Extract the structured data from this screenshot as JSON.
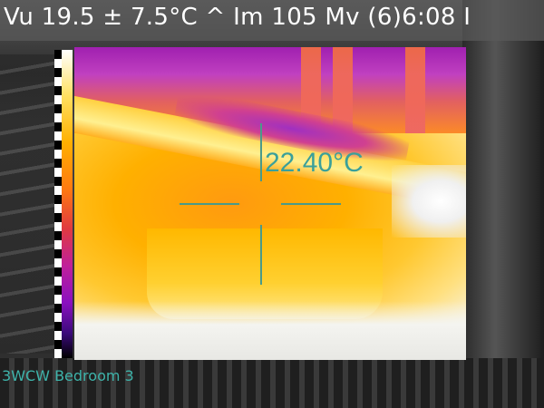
{
  "header": {
    "readout": "Vu 19.5 ± 7.5°C ^  Im 105 Mv (6)6:08 I"
  },
  "spot": {
    "temperature": "22.40°C"
  },
  "footer": {
    "location": "3WCW Bedroom 3"
  },
  "colors": {
    "overlay_text": "#ffffff",
    "crosshair": "#4a9a8a",
    "spot_text": "#3aa09a",
    "location_text": "#3eb3aa"
  },
  "palette": {
    "name": "iron",
    "stops": [
      "#000000",
      "#3a0a7a",
      "#8a10c0",
      "#c0209a",
      "#e03a40",
      "#ff7a10",
      "#ffb000",
      "#ffe060",
      "#ffffff"
    ]
  }
}
